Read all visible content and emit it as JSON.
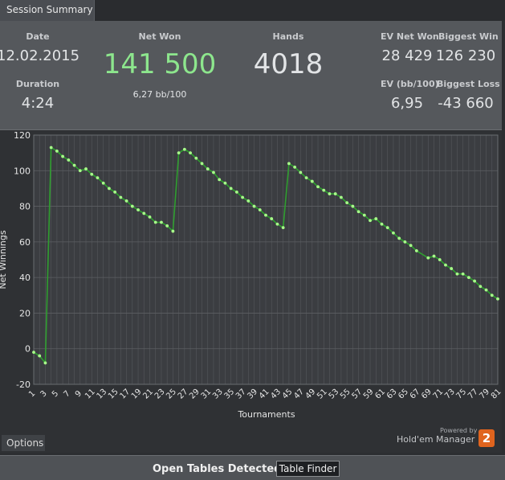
{
  "tab": {
    "label": "Session Summary"
  },
  "summary": {
    "date_label": "Date",
    "date_value": "12.02.2015",
    "duration_label": "Duration",
    "duration_value": "4:24",
    "net_won_label": "Net Won",
    "net_won_value": "141 500",
    "net_won_sub": "6,27 bb/100",
    "hands_label": "Hands",
    "hands_value": "4018",
    "ev_net_won_label": "EV Net Won",
    "ev_net_won_value": "28 429",
    "biggest_win_label": "Biggest Win",
    "biggest_win_value": "126 230",
    "ev_bb_label": "EV (bb/100)",
    "ev_bb_value": "6,95",
    "biggest_loss_label": "Biggest Loss",
    "biggest_loss_value": "-43 660"
  },
  "colors": {
    "net_won": "#8de68d",
    "line": "#2f9e2f",
    "point": "#a8ff8a"
  },
  "chart_data": {
    "type": "line",
    "xlabel": "Tournaments",
    "ylabel": "Net Winnings",
    "xlim": [
      1,
      81
    ],
    "ylim": [
      -20,
      120
    ],
    "y_ticks": [
      -20,
      0,
      20,
      40,
      60,
      80,
      100,
      120
    ],
    "x_ticks": [
      1,
      3,
      5,
      7,
      9,
      11,
      13,
      15,
      17,
      19,
      21,
      23,
      25,
      27,
      29,
      31,
      33,
      35,
      37,
      39,
      41,
      43,
      45,
      47,
      49,
      51,
      53,
      55,
      57,
      59,
      61,
      63,
      65,
      67,
      69,
      71,
      73,
      75,
      77,
      79,
      81
    ],
    "grid": true,
    "series": [
      {
        "x": [
          1,
          2,
          3,
          4,
          5,
          6,
          7,
          8,
          9,
          10,
          11,
          12,
          13,
          14,
          15,
          16,
          17,
          18,
          19,
          20,
          21,
          22,
          23,
          24,
          25,
          26,
          27,
          28,
          29,
          30,
          31,
          32,
          33,
          34,
          35,
          36,
          37,
          38,
          39,
          40,
          41,
          42,
          43,
          44,
          45,
          46,
          47,
          48,
          49,
          50,
          51,
          52,
          53,
          54,
          55,
          56,
          57,
          58,
          59,
          60,
          61,
          62,
          63,
          64,
          65,
          66,
          67,
          69,
          70,
          71,
          72,
          73,
          74,
          75,
          76,
          77,
          78,
          79,
          80,
          81
        ],
        "y": [
          -2,
          -4,
          -8,
          113,
          111,
          108,
          106,
          103,
          100,
          101,
          98,
          96,
          93,
          90,
          88,
          85,
          83,
          80,
          78,
          76,
          74,
          71,
          71,
          69,
          66,
          110,
          112,
          110,
          107,
          104,
          101,
          99,
          95,
          93,
          90,
          88,
          85,
          83,
          80,
          78,
          75,
          73,
          70,
          68,
          104,
          102,
          99,
          96,
          94,
          91,
          89,
          87,
          87,
          85,
          82,
          80,
          77,
          75,
          72,
          73,
          70,
          68,
          65,
          62,
          60,
          58,
          55,
          51,
          52,
          50,
          47,
          45,
          42,
          42,
          40,
          38,
          35,
          33,
          30,
          28
        ]
      }
    ]
  }
}
